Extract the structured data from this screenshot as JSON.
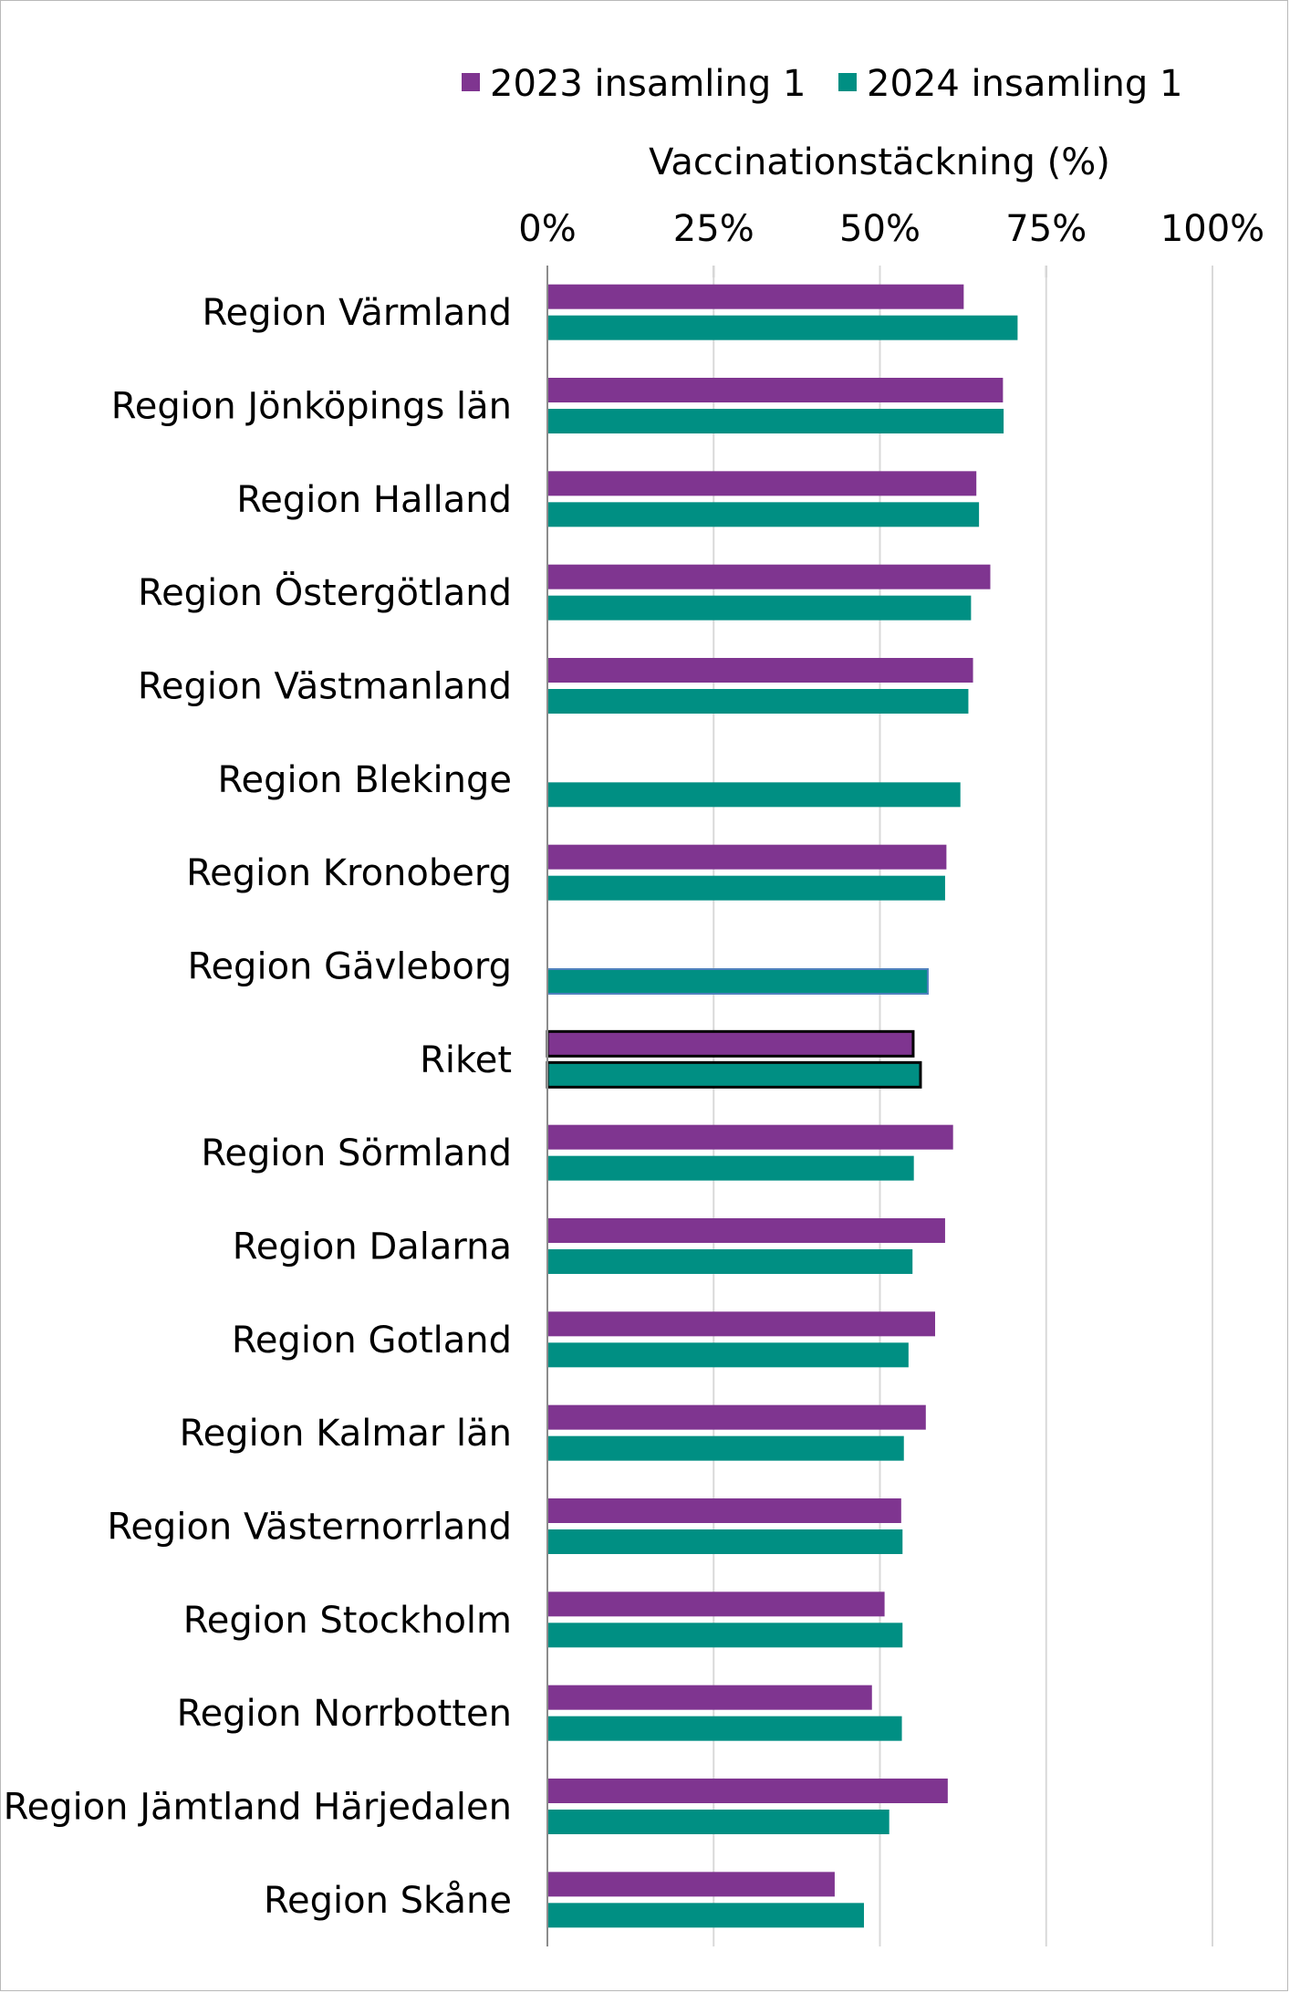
{
  "chart_data": {
    "type": "bar",
    "orientation": "horizontal",
    "axis_title": "Vaccinationstäckning (%)",
    "x_ticks": [
      "0%",
      "25%",
      "50%",
      "75%",
      "100%"
    ],
    "xlim": [
      0,
      100
    ],
    "grid": true,
    "legend_position": "top",
    "categories": [
      "Region Värmland",
      "Region Jönköpings län",
      "Region Halland",
      "Region Östergötland",
      "Region Västmanland",
      "Region Blekinge",
      "Region Kronoberg",
      "Region Gävleborg",
      "Riket",
      "Region Sörmland",
      "Region Dalarna",
      "Region Gotland",
      "Region Kalmar län",
      "Region Västernorrland",
      "Region Stockholm",
      "Region Norrbotten",
      "Region Jämtland Härjedalen",
      "Region Skåne"
    ],
    "series": [
      {
        "name": "2023 insamling 1",
        "color": "#7f3590",
        "values": [
          62.6,
          68.5,
          64.5,
          66.6,
          64.0,
          null,
          60.0,
          null,
          55.0,
          61.0,
          59.8,
          58.3,
          56.9,
          53.2,
          50.7,
          48.8,
          60.2,
          43.2
        ]
      },
      {
        "name": "2024 insamling 1",
        "color": "#008f83",
        "values": [
          70.7,
          68.6,
          64.9,
          63.7,
          63.3,
          62.1,
          59.8,
          57.2,
          56.1,
          55.1,
          54.9,
          54.3,
          53.6,
          53.4,
          53.4,
          53.3,
          51.4,
          47.6
        ]
      }
    ],
    "outlined_category": "Riket",
    "outline_color": "#000000",
    "gavleborg_outline_color": "#4f81bd"
  }
}
